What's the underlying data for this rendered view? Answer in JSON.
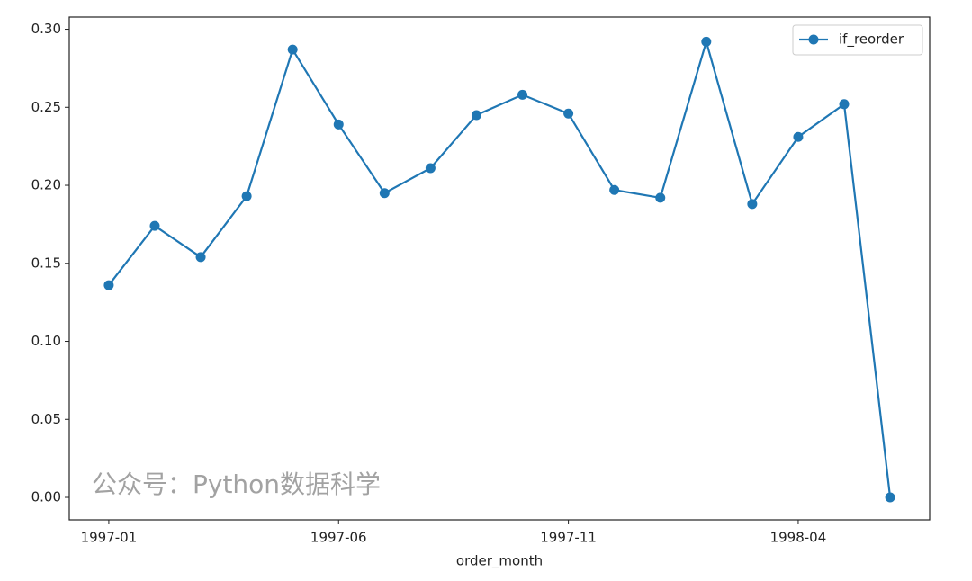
{
  "chart_data": {
    "type": "line",
    "categories": [
      "1997-01",
      null,
      null,
      null,
      null,
      "1997-06",
      null,
      null,
      null,
      null,
      "1997-11",
      null,
      null,
      null,
      null,
      "1998-04",
      null,
      null
    ],
    "series": [
      {
        "name": "if_reorder",
        "color": "#1f77b4",
        "values": [
          0.136,
          0.174,
          0.154,
          0.193,
          0.287,
          0.239,
          0.195,
          0.211,
          0.245,
          0.258,
          0.246,
          0.197,
          0.192,
          0.292,
          0.188,
          0.231,
          0.252,
          0
        ]
      }
    ],
    "xlabel": "order_month",
    "ylim": [
      -0.0144,
      0.3078
    ],
    "yticks": [
      {
        "value": 0,
        "label": "0.00"
      },
      0.05,
      {
        "value": 0.1,
        "label": "0.10"
      },
      0.15,
      {
        "value": 0.2,
        "label": "0.20"
      },
      0.25,
      {
        "value": 0.3,
        "label": "0.30"
      }
    ],
    "legend": "upper right",
    "watermark": "公众号：Python数据科学"
  }
}
